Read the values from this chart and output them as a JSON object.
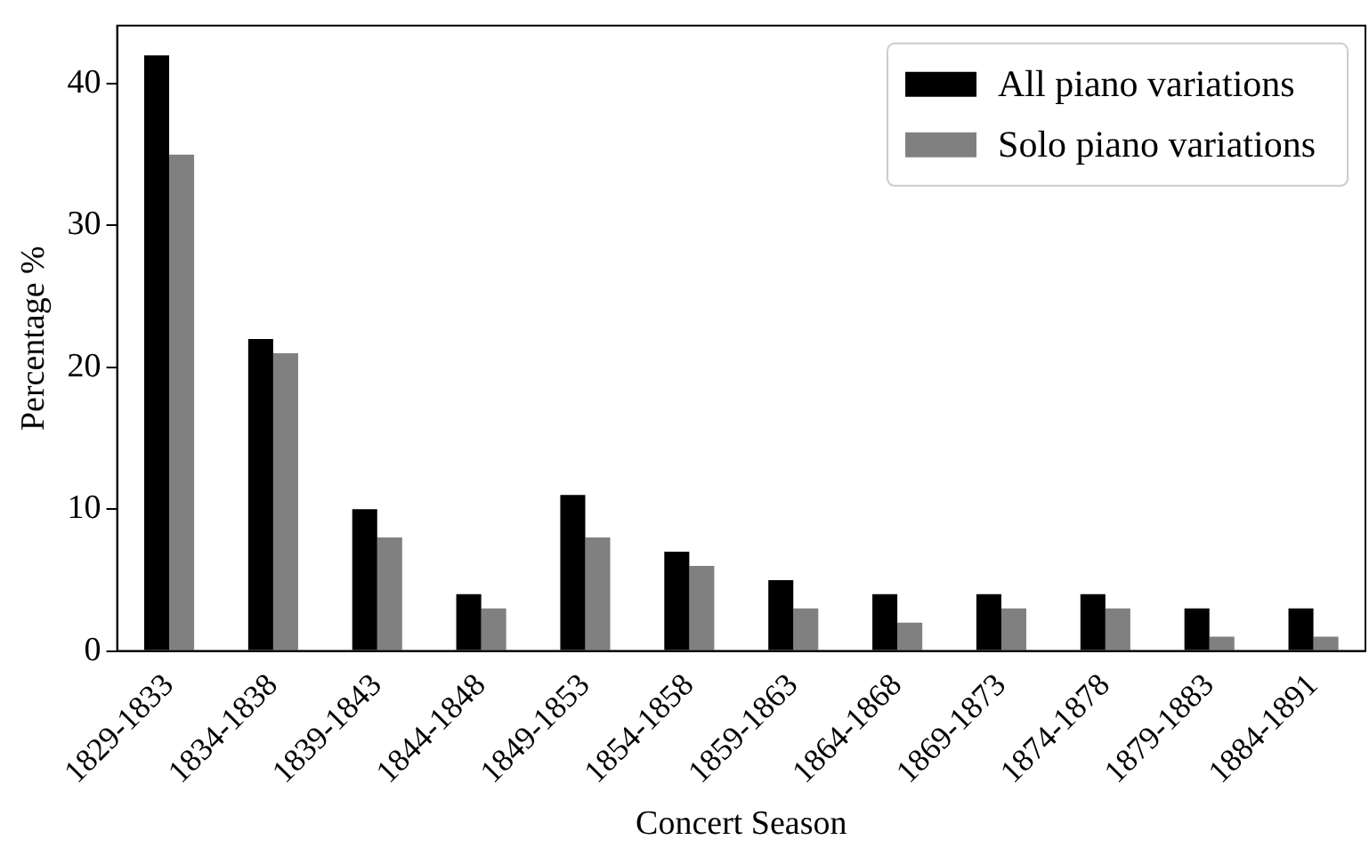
{
  "chart_data": {
    "type": "bar",
    "xlabel": "Concert Season",
    "ylabel": "Percentage %",
    "categories": [
      "1829-1833",
      "1834-1838",
      "1839-1843",
      "1844-1848",
      "1849-1853",
      "1854-1858",
      "1859-1863",
      "1864-1868",
      "1869-1873",
      "1874-1878",
      "1879-1883",
      "1884-1891"
    ],
    "series": [
      {
        "name": "All piano variations",
        "color": "#000000",
        "values": [
          42,
          22,
          10,
          4,
          11,
          7,
          5,
          4,
          4,
          4,
          3,
          3
        ]
      },
      {
        "name": "Solo piano variations",
        "color": "#808080",
        "values": [
          35,
          21,
          8,
          3,
          8,
          6,
          3,
          2,
          3,
          3,
          1,
          1
        ]
      }
    ],
    "ylim": [
      0,
      44.1
    ],
    "yticks": [
      0,
      10,
      20,
      30,
      40
    ],
    "grid": false,
    "legend": "top right"
  }
}
